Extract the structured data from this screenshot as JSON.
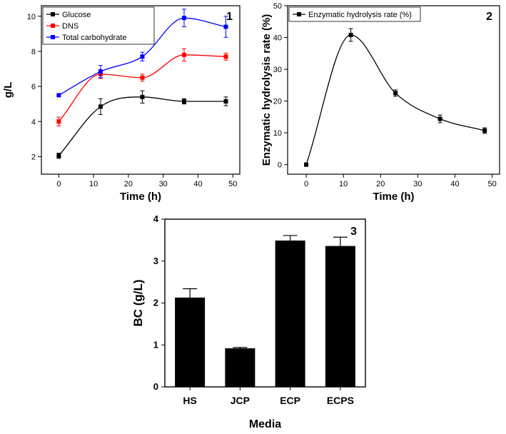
{
  "chart_data": [
    {
      "type": "line",
      "panel_label": "1",
      "xlabel": "Time (h)",
      "ylabel": "g/L",
      "xlim": [
        -5,
        52
      ],
      "ylim": [
        1,
        10.6
      ],
      "x_ticks": [
        0,
        10,
        20,
        30,
        40,
        50
      ],
      "y_ticks": [
        2,
        4,
        6,
        8,
        10
      ],
      "legend_position": "top-left",
      "x": [
        0,
        12,
        24,
        36,
        48
      ],
      "series": [
        {
          "name": "Glucose",
          "color": "#000000",
          "values": [
            2.05,
            4.85,
            5.4,
            5.15,
            5.15
          ],
          "errors": [
            0.15,
            0.45,
            0.35,
            0.15,
            0.25
          ]
        },
        {
          "name": "DNS",
          "color": "#ff0000",
          "values": [
            4.0,
            6.7,
            6.5,
            7.8,
            7.7
          ],
          "errors": [
            0.25,
            0.25,
            0.2,
            0.35,
            0.2
          ]
        },
        {
          "name": "Total carbohydrate",
          "color": "#0000ff",
          "values": [
            5.5,
            6.85,
            7.7,
            9.9,
            9.4
          ],
          "errors": [
            0.0,
            0.35,
            0.25,
            0.5,
            0.6
          ]
        }
      ]
    },
    {
      "type": "line",
      "panel_label": "2",
      "xlabel": "Time (h)",
      "ylabel": "Enzymatic  hydrolysis  rate (%)",
      "xlim": [
        -5,
        52
      ],
      "ylim": [
        -3,
        50
      ],
      "x_ticks": [
        0,
        10,
        20,
        30,
        40,
        50
      ],
      "y_ticks": [
        0,
        10,
        20,
        30,
        40,
        50
      ],
      "legend_position": "top-left",
      "x": [
        0,
        12,
        24,
        36,
        48
      ],
      "series": [
        {
          "name": "Enzymatic hydrolysis rate  (%)",
          "color": "#000000",
          "values": [
            0,
            40.8,
            22.5,
            14.4,
            10.7
          ],
          "errors": [
            0,
            2.0,
            1.0,
            1.2,
            0.9
          ]
        }
      ]
    },
    {
      "type": "bar",
      "panel_label": "3",
      "xlabel": "Media",
      "ylabel": "BC (g/L)",
      "ylim": [
        0,
        4
      ],
      "y_ticks": [
        0,
        1,
        2,
        3,
        4
      ],
      "categories": [
        "HS",
        "JCP",
        "ECP",
        "ECPS"
      ],
      "values": [
        2.13,
        0.92,
        3.49,
        3.36
      ],
      "errors": [
        0.21,
        0.02,
        0.12,
        0.21
      ],
      "color": "#000000"
    }
  ]
}
